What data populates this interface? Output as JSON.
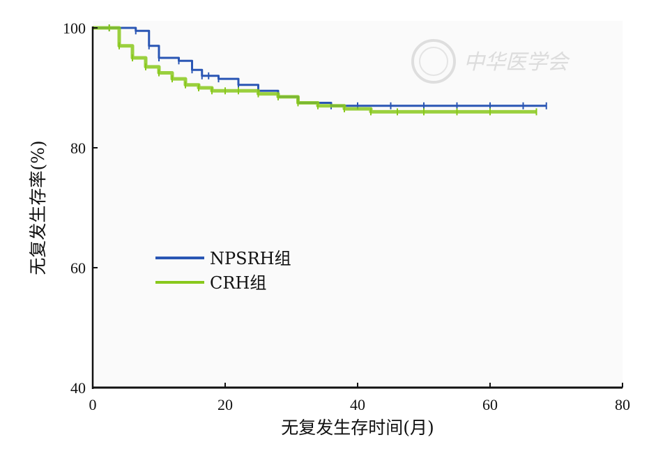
{
  "chart_data": {
    "type": "line",
    "xlabel": "无复发生存时间(月)",
    "ylabel": "无复发生存率(%)",
    "xlim": [
      0,
      80
    ],
    "ylim": [
      40,
      100
    ],
    "x_ticks": [
      "0",
      "20",
      "40",
      "60",
      "80"
    ],
    "y_ticks": [
      "40",
      "60",
      "80",
      "100"
    ],
    "grid": false,
    "legend_position": "left-middle",
    "series": [
      {
        "name": "NPSRH组",
        "color": "#2a56b4",
        "x": [
          0,
          2.5,
          6.5,
          8.5,
          10,
          13,
          15,
          16.5,
          17.5,
          19,
          22,
          25,
          28,
          31,
          36,
          40,
          45,
          50,
          55,
          60,
          65,
          68.5
        ],
        "y": [
          100,
          100,
          99.5,
          97,
          95,
          94.5,
          93,
          92,
          92,
          91.5,
          90.5,
          89.5,
          88.5,
          87.5,
          87,
          87,
          87,
          87,
          87,
          87,
          87,
          87
        ]
      },
      {
        "name": "CRH组",
        "color": "#88c81c",
        "x": [
          0,
          2.5,
          4,
          6,
          8,
          10,
          12,
          14,
          16,
          18,
          20,
          22,
          25,
          28,
          31,
          34,
          38,
          42,
          46,
          50,
          55,
          60,
          67
        ],
        "y": [
          100,
          100,
          97,
          95,
          93.5,
          92.5,
          91.5,
          90.5,
          90,
          89.5,
          89.5,
          89.5,
          89,
          88.5,
          87.5,
          87,
          86.5,
          86,
          86,
          86,
          86,
          86,
          86
        ]
      }
    ]
  },
  "watermark": {
    "text": "中华医学会"
  }
}
